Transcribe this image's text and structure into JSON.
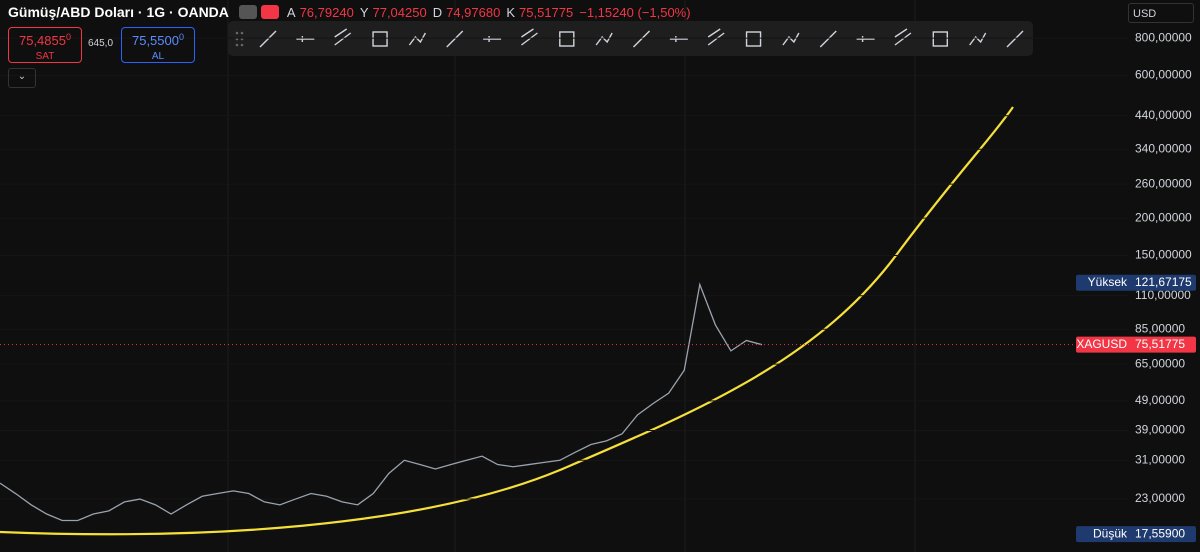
{
  "header": {
    "symbol_title": "Gümüş/ABD Doları · 1G · OANDA",
    "ohlc": [
      {
        "key": "A",
        "value": "76,79240"
      },
      {
        "key": "Y",
        "value": "77,04250"
      },
      {
        "key": "D",
        "value": "74,97680"
      },
      {
        "key": "K",
        "value": "75,51775"
      }
    ],
    "change": "−1,15240 (−1,50%)"
  },
  "trade": {
    "sell": {
      "price": "75,4855",
      "price_small": "0",
      "label": "SAT"
    },
    "spread": "645,0",
    "buy": {
      "price": "75,5500",
      "price_small": "0",
      "label": "AL"
    }
  },
  "currency": "USD",
  "chart_data": {
    "type": "line",
    "scale": "log",
    "line_color": "#9aa3ad",
    "values": [
      26,
      24,
      22,
      20.5,
      19.5,
      19.5,
      20.5,
      21,
      22.5,
      23,
      22,
      20.5,
      22,
      23.5,
      24,
      24.5,
      24,
      22.5,
      22,
      23,
      24,
      23.5,
      22.5,
      22,
      24,
      28,
      31,
      30,
      29,
      30,
      31,
      32,
      30,
      29.5,
      30,
      30.5,
      31,
      33,
      35,
      36,
      38,
      44,
      48,
      52,
      62,
      120,
      88,
      72,
      78,
      75.5
    ],
    "ylim": [
      15.3,
      1073
    ],
    "yticks": [
      {
        "value": 800,
        "label": "800,00000"
      },
      {
        "value": 600,
        "label": "600,00000"
      },
      {
        "value": 440,
        "label": "440,00000"
      },
      {
        "value": 340,
        "label": "340,00000"
      },
      {
        "value": 260,
        "label": "260,00000"
      },
      {
        "value": 200,
        "label": "200,00000"
      },
      {
        "value": 150,
        "label": "150,00000"
      },
      {
        "value": 110,
        "label": "110,00000"
      },
      {
        "value": 85,
        "label": "85,00000"
      },
      {
        "value": 65,
        "label": "65,00000"
      },
      {
        "value": 49,
        "label": "49,00000"
      },
      {
        "value": 39,
        "label": "39,00000"
      },
      {
        "value": 31,
        "label": "31,00000"
      },
      {
        "value": 23,
        "label": "23,00000"
      }
    ],
    "markers": [
      {
        "name": "Yüksek",
        "value": 121.67175,
        "label": "121,67175",
        "color": "#1e3a6e"
      },
      {
        "name": "XAGUSD",
        "value": 75.51775,
        "label": "75,51775",
        "color": "#f23645"
      },
      {
        "name": "Düşük",
        "value": 17.559,
        "label": "17,55900",
        "color": "#1e3a6e"
      }
    ]
  }
}
